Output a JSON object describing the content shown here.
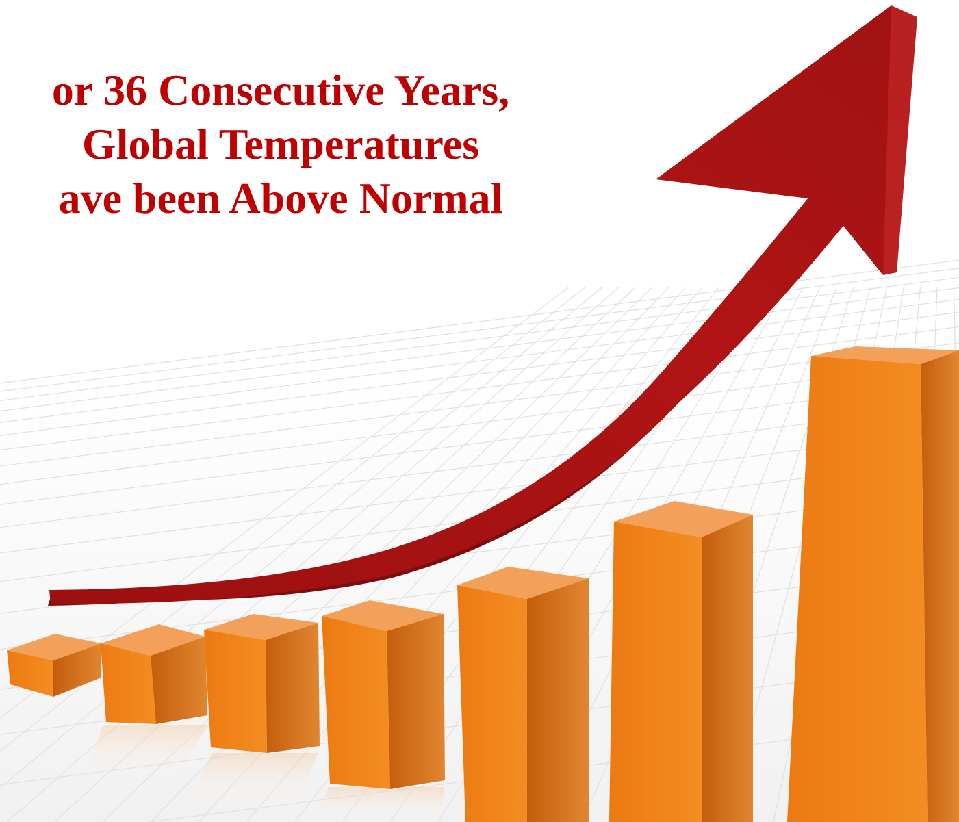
{
  "headline": {
    "line1": "or 36 Consecutive Years,",
    "line2": "Global Temperatures",
    "line3": "ave been Above Normal"
  },
  "colors": {
    "headline": "#c00000",
    "arrow": "#a81414",
    "arrow_dark": "#7d0c0c",
    "bar_front": "#ef8419",
    "bar_side": "#c9640e",
    "bar_top": "#f4a566",
    "grid": "#e2e2e2"
  },
  "illustration": {
    "subject": "rising-bar-graph-with-arrow",
    "bar_count": 7,
    "trend": "increasing"
  }
}
